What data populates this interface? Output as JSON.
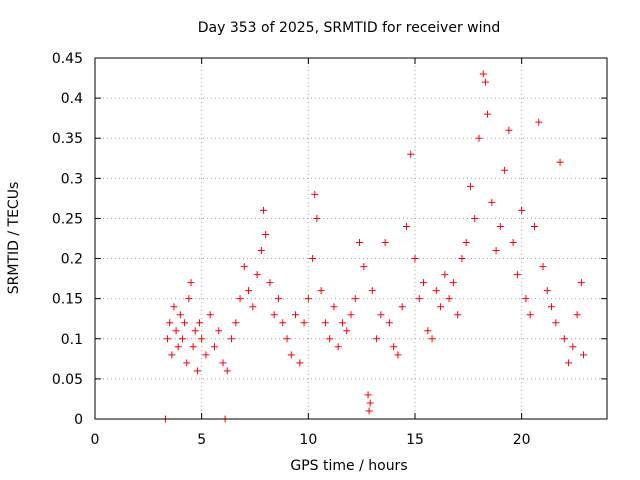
{
  "chart_data": {
    "type": "scatter",
    "title": "Day 353 of 2025, SRMTID for receiver wind",
    "xlabel": "GPS time / hours",
    "ylabel": "SRMTID / TECUs",
    "xlim": [
      0,
      24
    ],
    "ylim": [
      0,
      0.45
    ],
    "xticks": [
      "0",
      "5",
      "10",
      "15",
      "20"
    ],
    "yticks": [
      "0",
      "0.05",
      "0.1",
      "0.15",
      "0.2",
      "0.25",
      "0.3",
      "0.35",
      "0.4",
      "0.45"
    ],
    "grid": true,
    "marker": "plus",
    "color": "#ff0000",
    "x_range_observed": [
      3.3,
      22.9
    ],
    "points": [
      [
        3.3,
        0.0
      ],
      [
        6.1,
        0.0
      ],
      [
        3.4,
        0.1
      ],
      [
        3.5,
        0.12
      ],
      [
        3.6,
        0.08
      ],
      [
        3.7,
        0.14
      ],
      [
        3.8,
        0.11
      ],
      [
        3.9,
        0.09
      ],
      [
        4.0,
        0.13
      ],
      [
        4.1,
        0.1
      ],
      [
        4.2,
        0.12
      ],
      [
        4.3,
        0.07
      ],
      [
        4.4,
        0.15
      ],
      [
        4.5,
        0.17
      ],
      [
        4.6,
        0.09
      ],
      [
        4.7,
        0.11
      ],
      [
        4.8,
        0.06
      ],
      [
        4.9,
        0.12
      ],
      [
        5.0,
        0.1
      ],
      [
        5.2,
        0.08
      ],
      [
        5.4,
        0.13
      ],
      [
        5.6,
        0.09
      ],
      [
        5.8,
        0.11
      ],
      [
        6.0,
        0.07
      ],
      [
        6.2,
        0.06
      ],
      [
        6.4,
        0.1
      ],
      [
        6.6,
        0.12
      ],
      [
        6.8,
        0.15
      ],
      [
        7.0,
        0.19
      ],
      [
        7.2,
        0.16
      ],
      [
        7.4,
        0.14
      ],
      [
        7.6,
        0.18
      ],
      [
        7.8,
        0.21
      ],
      [
        7.9,
        0.26
      ],
      [
        8.0,
        0.23
      ],
      [
        8.2,
        0.17
      ],
      [
        8.4,
        0.13
      ],
      [
        8.6,
        0.15
      ],
      [
        8.8,
        0.12
      ],
      [
        9.0,
        0.1
      ],
      [
        9.2,
        0.08
      ],
      [
        9.4,
        0.13
      ],
      [
        9.6,
        0.07
      ],
      [
        9.8,
        0.12
      ],
      [
        10.0,
        0.15
      ],
      [
        10.2,
        0.2
      ],
      [
        10.3,
        0.28
      ],
      [
        10.4,
        0.25
      ],
      [
        10.6,
        0.16
      ],
      [
        10.8,
        0.12
      ],
      [
        11.0,
        0.1
      ],
      [
        11.2,
        0.14
      ],
      [
        11.4,
        0.09
      ],
      [
        11.6,
        0.12
      ],
      [
        11.8,
        0.11
      ],
      [
        12.0,
        0.13
      ],
      [
        12.2,
        0.15
      ],
      [
        12.4,
        0.22
      ],
      [
        12.6,
        0.19
      ],
      [
        12.8,
        0.03
      ],
      [
        12.85,
        0.01
      ],
      [
        12.9,
        0.02
      ],
      [
        13.0,
        0.16
      ],
      [
        13.2,
        0.1
      ],
      [
        13.4,
        0.13
      ],
      [
        13.6,
        0.22
      ],
      [
        13.8,
        0.12
      ],
      [
        14.0,
        0.09
      ],
      [
        14.2,
        0.08
      ],
      [
        14.4,
        0.14
      ],
      [
        14.6,
        0.24
      ],
      [
        14.8,
        0.33
      ],
      [
        15.0,
        0.2
      ],
      [
        15.2,
        0.15
      ],
      [
        15.4,
        0.17
      ],
      [
        15.6,
        0.11
      ],
      [
        15.8,
        0.1
      ],
      [
        16.0,
        0.16
      ],
      [
        16.2,
        0.14
      ],
      [
        16.4,
        0.18
      ],
      [
        16.6,
        0.15
      ],
      [
        16.8,
        0.17
      ],
      [
        17.0,
        0.13
      ],
      [
        17.2,
        0.2
      ],
      [
        17.4,
        0.22
      ],
      [
        17.6,
        0.29
      ],
      [
        17.8,
        0.25
      ],
      [
        18.0,
        0.35
      ],
      [
        18.2,
        0.43
      ],
      [
        18.3,
        0.42
      ],
      [
        18.4,
        0.38
      ],
      [
        18.6,
        0.27
      ],
      [
        18.8,
        0.21
      ],
      [
        19.0,
        0.24
      ],
      [
        19.2,
        0.31
      ],
      [
        19.4,
        0.36
      ],
      [
        19.6,
        0.22
      ],
      [
        19.8,
        0.18
      ],
      [
        20.0,
        0.26
      ],
      [
        20.2,
        0.15
      ],
      [
        20.4,
        0.13
      ],
      [
        20.6,
        0.24
      ],
      [
        20.8,
        0.37
      ],
      [
        21.0,
        0.19
      ],
      [
        21.2,
        0.16
      ],
      [
        21.4,
        0.14
      ],
      [
        21.6,
        0.12
      ],
      [
        21.8,
        0.32
      ],
      [
        22.0,
        0.1
      ],
      [
        22.2,
        0.07
      ],
      [
        22.4,
        0.09
      ],
      [
        22.6,
        0.13
      ],
      [
        22.8,
        0.17
      ],
      [
        22.9,
        0.08
      ]
    ]
  }
}
